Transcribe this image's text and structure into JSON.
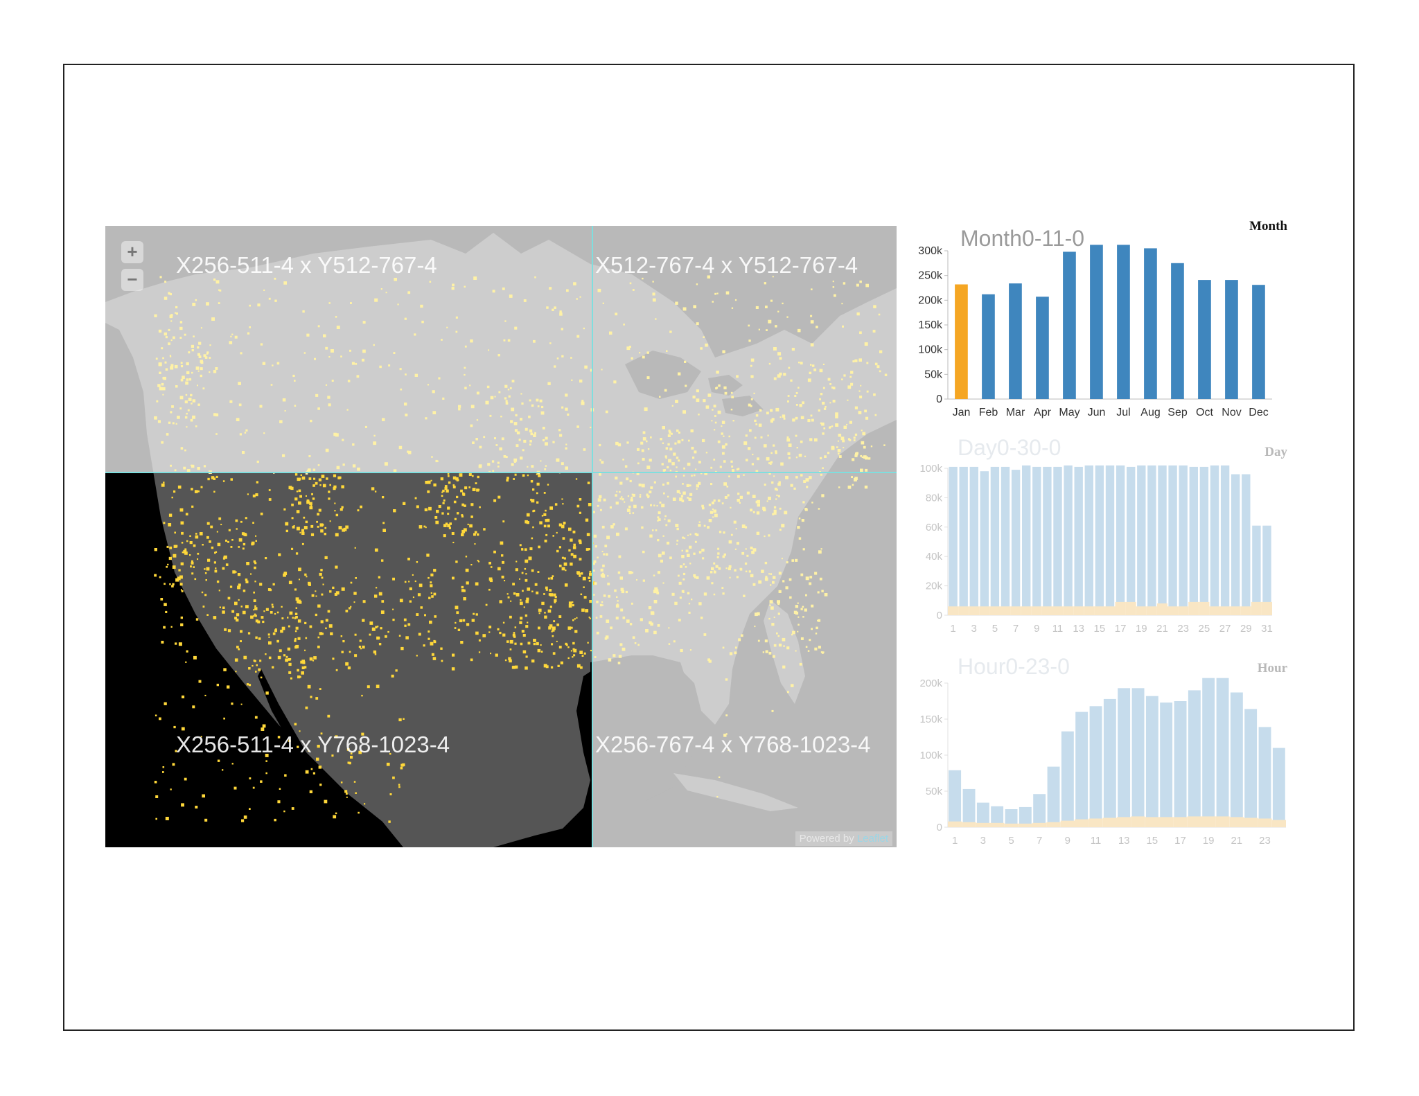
{
  "map": {
    "zoom_in_label": "+",
    "zoom_out_label": "−",
    "tiles": [
      {
        "label": "X256-511-4 x Y512-767-4"
      },
      {
        "label": "X512-767-4 x Y512-767-4"
      },
      {
        "label": "X256-511-4 x Y768-1023-4"
      },
      {
        "label": "X256-767-4 x Y768-1023-4"
      }
    ],
    "attribution": {
      "prefix": "Powered by ",
      "link": "Leaflet"
    },
    "colors": {
      "land_light": "#cdcdcd",
      "water_light": "#b9b9b9",
      "land_dark": "#555555",
      "water_dark": "#000000",
      "points_bright": "#ffd83a",
      "points_faded": "#fff2a6",
      "grid": "#7fdede"
    }
  },
  "charts": {
    "month": {
      "title": "Month0-11-0",
      "corner_label": "Month",
      "highlight_color": "#f5a623",
      "bar_color": "#3f86be"
    },
    "day": {
      "title": "Day0-30-0",
      "corner_label": "Day",
      "bar_color": "#c6dcec",
      "overlay_color": "#f9e6c4"
    },
    "hour": {
      "title": "Hour0-23-0",
      "corner_label": "Hour",
      "bar_color": "#c6dcec",
      "overlay_color": "#f9e6c4"
    }
  },
  "chart_data": [
    {
      "type": "bar",
      "title": "Month0-11-0",
      "categories": [
        "Jan",
        "Feb",
        "Mar",
        "Apr",
        "May",
        "Jun",
        "Jul",
        "Aug",
        "Sep",
        "Oct",
        "Nov",
        "Dec"
      ],
      "values": [
        232000,
        212000,
        234000,
        207000,
        298000,
        313000,
        318000,
        305000,
        275000,
        241000,
        241000,
        231000
      ],
      "highlighted": [
        "Jan"
      ],
      "yticks": [
        "0",
        "50k",
        "100k",
        "150k",
        "200k",
        "250k",
        "300k"
      ],
      "ylim": [
        0,
        300000
      ]
    },
    {
      "type": "bar",
      "title": "Day0-30-0",
      "categories": [
        "1",
        "2",
        "3",
        "4",
        "5",
        "6",
        "7",
        "8",
        "9",
        "10",
        "11",
        "12",
        "13",
        "14",
        "15",
        "16",
        "17",
        "18",
        "19",
        "20",
        "21",
        "22",
        "23",
        "24",
        "25",
        "26",
        "27",
        "28",
        "29",
        "30",
        "31"
      ],
      "xticks": [
        "1",
        "3",
        "5",
        "7",
        "9",
        "11",
        "13",
        "15",
        "17",
        "19",
        "21",
        "23",
        "25",
        "27",
        "29",
        "31"
      ],
      "series": [
        {
          "values": [
            101000,
            101000,
            101000,
            98000,
            101000,
            101000,
            99000,
            102000,
            101000,
            101000,
            101000,
            102000,
            101000,
            102000,
            102000,
            102000,
            102000,
            101000,
            102000,
            102000,
            102000,
            102000,
            102000,
            101000,
            101000,
            102000,
            102000,
            96000,
            96000,
            61000,
            61000
          ]
        },
        {
          "values": [
            6000,
            6000,
            6000,
            6000,
            6000,
            6000,
            6000,
            6000,
            6000,
            6000,
            6000,
            6000,
            6000,
            6000,
            6000,
            6000,
            9000,
            9000,
            6000,
            6000,
            8000,
            6000,
            6000,
            9000,
            9000,
            6000,
            6000,
            6000,
            6000,
            9000,
            9000
          ]
        }
      ],
      "yticks": [
        "0",
        "20k",
        "40k",
        "60k",
        "80k",
        "100k"
      ],
      "ylim": [
        0,
        100000
      ]
    },
    {
      "type": "bar",
      "title": "Hour0-23-0",
      "categories": [
        "1",
        "2",
        "3",
        "4",
        "5",
        "6",
        "7",
        "8",
        "9",
        "10",
        "11",
        "12",
        "13",
        "14",
        "15",
        "16",
        "17",
        "18",
        "19",
        "20",
        "21",
        "22",
        "23",
        "24"
      ],
      "xticks": [
        "1",
        "3",
        "5",
        "7",
        "9",
        "11",
        "13",
        "15",
        "17",
        "19",
        "21",
        "23"
      ],
      "series": [
        {
          "values": [
            79000,
            53000,
            34000,
            29000,
            25000,
            28000,
            46000,
            84000,
            133000,
            160000,
            168000,
            178000,
            193000,
            193000,
            182000,
            173000,
            175000,
            190000,
            207000,
            207000,
            187000,
            164000,
            139000,
            110000
          ]
        },
        {
          "values": [
            8000,
            7000,
            6000,
            6000,
            5000,
            5000,
            6000,
            7000,
            9000,
            11000,
            12000,
            13000,
            14000,
            15000,
            14000,
            14000,
            14000,
            15000,
            15000,
            15000,
            14000,
            13000,
            12000,
            10000
          ]
        }
      ],
      "yticks": [
        "0",
        "50k",
        "100k",
        "150k",
        "200k"
      ],
      "ylim": [
        0,
        200000
      ]
    }
  ]
}
